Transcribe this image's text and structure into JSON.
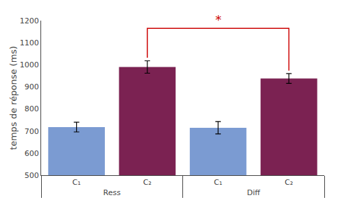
{
  "chart_data": {
    "type": "bar",
    "categories": [
      "Ress",
      "Diff"
    ],
    "series": [
      {
        "name": "C₁",
        "color": "#7b9bd2",
        "values": [
          718,
          715
        ],
        "errors": [
          22,
          28
        ]
      },
      {
        "name": "C₂",
        "color": "#7b2252",
        "values": [
          990,
          938
        ],
        "errors": [
          28,
          22
        ]
      }
    ],
    "ylabel": "temps de réponse (ms)",
    "ylim": [
      500,
      1200
    ],
    "yticks": [
      500,
      600,
      700,
      800,
      900,
      1000,
      1100,
      1200
    ],
    "grid": false,
    "annotations": [
      {
        "text": "*",
        "color": "#cc0000",
        "from": {
          "category": "Ress",
          "series": "C₂"
        },
        "to": {
          "category": "Diff",
          "series": "C₂"
        }
      }
    ]
  }
}
